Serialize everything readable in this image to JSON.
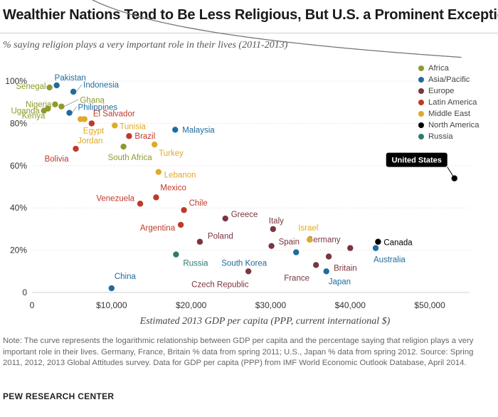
{
  "header": {
    "title": "Wealthier Nations Tend to Be Less Religious, But U.S. a Prominent Exception",
    "subtitle": "% saying religion plays a very important role in their lives (2011-2013)"
  },
  "footer": {
    "note": "Note: The curve represents the logarithmic relationship between GDP per capita and the percentage saying that religion plays a very important role in their lives. Germany, France, Britain % data from spring 2011; U.S., Japan % data from spring 2012. Source: Spring 2011, 2012, 2013 Global Attitudes survey. Data for GDP per capita (PPP) from IMF World Economic Outlook Database, April 2014.",
    "source": "PEW RESEARCH CENTER"
  },
  "legend": [
    {
      "label": "Africa",
      "color": "#8f9a2e"
    },
    {
      "label": "Asia/Pacific",
      "color": "#1f6b9e"
    },
    {
      "label": "Europe",
      "color": "#7b3540"
    },
    {
      "label": "Latin America",
      "color": "#c0392b"
    },
    {
      "label": "Middle East",
      "color": "#e0a928"
    },
    {
      "label": "North America",
      "color": "#000000"
    },
    {
      "label": "Russia",
      "color": "#2d7a6e"
    }
  ],
  "chart_data": {
    "type": "scatter",
    "xlabel": "Estimated 2013 GDP per capita (PPP, current international $)",
    "ylabel": "",
    "xlim": [
      0,
      55000
    ],
    "ylim": [
      0,
      100
    ],
    "x_ticks": [
      {
        "value": 0,
        "label": "0"
      },
      {
        "value": 10000,
        "label": "$10,000"
      },
      {
        "value": 20000,
        "label": "$20,000"
      },
      {
        "value": 30000,
        "label": "$30,000"
      },
      {
        "value": 40000,
        "label": "$40,000"
      },
      {
        "value": 50000,
        "label": "$50,000"
      }
    ],
    "y_ticks": [
      {
        "value": 0,
        "label": "0"
      },
      {
        "value": 20,
        "label": "20%"
      },
      {
        "value": 40,
        "label": "40%"
      },
      {
        "value": 60,
        "label": "60%"
      },
      {
        "value": 80,
        "label": "80%"
      },
      {
        "value": 100,
        "label": "100%"
      }
    ],
    "grid": "horizontal",
    "legend_position": "top-right",
    "trend": {
      "type": "logarithmic",
      "a": 166.5,
      "b": -13.85
    },
    "series": [
      {
        "name": "Africa",
        "color": "#8f9a2e",
        "points": [
          {
            "label": "Senegal",
            "x": 2200,
            "y": 97
          },
          {
            "label": "Nigeria",
            "x": 2900,
            "y": 89
          },
          {
            "label": "Ghana",
            "x": 3700,
            "y": 88
          },
          {
            "label": "Uganda",
            "x": 1500,
            "y": 86
          },
          {
            "label": "Kenya",
            "x": 2000,
            "y": 87
          },
          {
            "label": "South Africa",
            "x": 11500,
            "y": 69
          }
        ]
      },
      {
        "name": "Asia/Pacific",
        "color": "#1f6b9e",
        "points": [
          {
            "label": "Pakistan",
            "x": 3100,
            "y": 98
          },
          {
            "label": "Indonesia",
            "x": 5200,
            "y": 95
          },
          {
            "label": "Philippines",
            "x": 4700,
            "y": 85
          },
          {
            "label": "Malaysia",
            "x": 18000,
            "y": 77
          },
          {
            "label": "South Korea",
            "x": 33200,
            "y": 19
          },
          {
            "label": "Japan",
            "x": 37000,
            "y": 10
          },
          {
            "label": "Australia",
            "x": 43200,
            "y": 21
          },
          {
            "label": "China",
            "x": 10000,
            "y": 2
          }
        ]
      },
      {
        "name": "Europe",
        "color": "#7b3540",
        "points": [
          {
            "label": "Poland",
            "x": 21100,
            "y": 24
          },
          {
            "label": "Greece",
            "x": 24300,
            "y": 35
          },
          {
            "label": "Italy",
            "x": 30300,
            "y": 30
          },
          {
            "label": "Spain",
            "x": 30100,
            "y": 22
          },
          {
            "label": "Germany",
            "x": 40000,
            "y": 21
          },
          {
            "label": "Britain",
            "x": 37300,
            "y": 17
          },
          {
            "label": "France",
            "x": 35700,
            "y": 13
          },
          {
            "label": "Czech Republic",
            "x": 27200,
            "y": 10
          }
        ]
      },
      {
        "name": "Latin America",
        "color": "#c0392b",
        "points": [
          {
            "label": "El Salvador",
            "x": 7500,
            "y": 80
          },
          {
            "label": "Bolivia",
            "x": 5500,
            "y": 68
          },
          {
            "label": "Brazil",
            "x": 12200,
            "y": 74
          },
          {
            "label": "Mexico",
            "x": 15600,
            "y": 45
          },
          {
            "label": "Venezuela",
            "x": 13600,
            "y": 42
          },
          {
            "label": "Chile",
            "x": 19100,
            "y": 39
          },
          {
            "label": "Argentina",
            "x": 18700,
            "y": 32
          }
        ]
      },
      {
        "name": "Middle East",
        "color": "#e0a928",
        "points": [
          {
            "label": "Egypt",
            "x": 6600,
            "y": 82
          },
          {
            "label": "Jordan",
            "x": 6100,
            "y": 82
          },
          {
            "label": "Tunisia",
            "x": 10400,
            "y": 79
          },
          {
            "label": "Turkey",
            "x": 15400,
            "y": 70
          },
          {
            "label": "Lebanon",
            "x": 15900,
            "y": 57
          },
          {
            "label": "Israel",
            "x": 34900,
            "y": 25
          }
        ]
      },
      {
        "name": "North America",
        "color": "#000000",
        "points": [
          {
            "label": "Canada",
            "x": 43500,
            "y": 24
          },
          {
            "label": "United States",
            "x": 53100,
            "y": 54
          }
        ]
      },
      {
        "name": "Russia",
        "color": "#2d7a6e",
        "points": [
          {
            "label": "Russia",
            "x": 18100,
            "y": 18
          }
        ]
      }
    ]
  }
}
